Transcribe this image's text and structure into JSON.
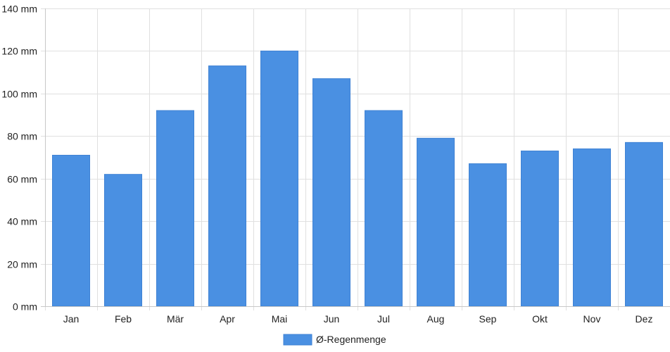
{
  "chart_data": {
    "type": "bar",
    "categories": [
      "Jan",
      "Feb",
      "Mär",
      "Apr",
      "Mai",
      "Jun",
      "Jul",
      "Aug",
      "Sep",
      "Okt",
      "Nov",
      "Dez"
    ],
    "series": [
      {
        "name": "Ø-Regenmenge",
        "values": [
          71,
          62,
          92,
          113,
          120,
          107,
          92,
          79,
          67,
          73,
          74,
          77
        ],
        "color": "#4a90e2"
      }
    ],
    "y_ticks": [
      "0 mm",
      "20 mm",
      "40 mm",
      "60 mm",
      "80 mm",
      "100 mm",
      "120 mm",
      "140 mm"
    ],
    "ylim": [
      0,
      140
    ],
    "y_step": 20,
    "unit": "mm",
    "grid": true,
    "legend_position": "bottom-center",
    "title": "",
    "xlabel": "",
    "ylabel": ""
  }
}
